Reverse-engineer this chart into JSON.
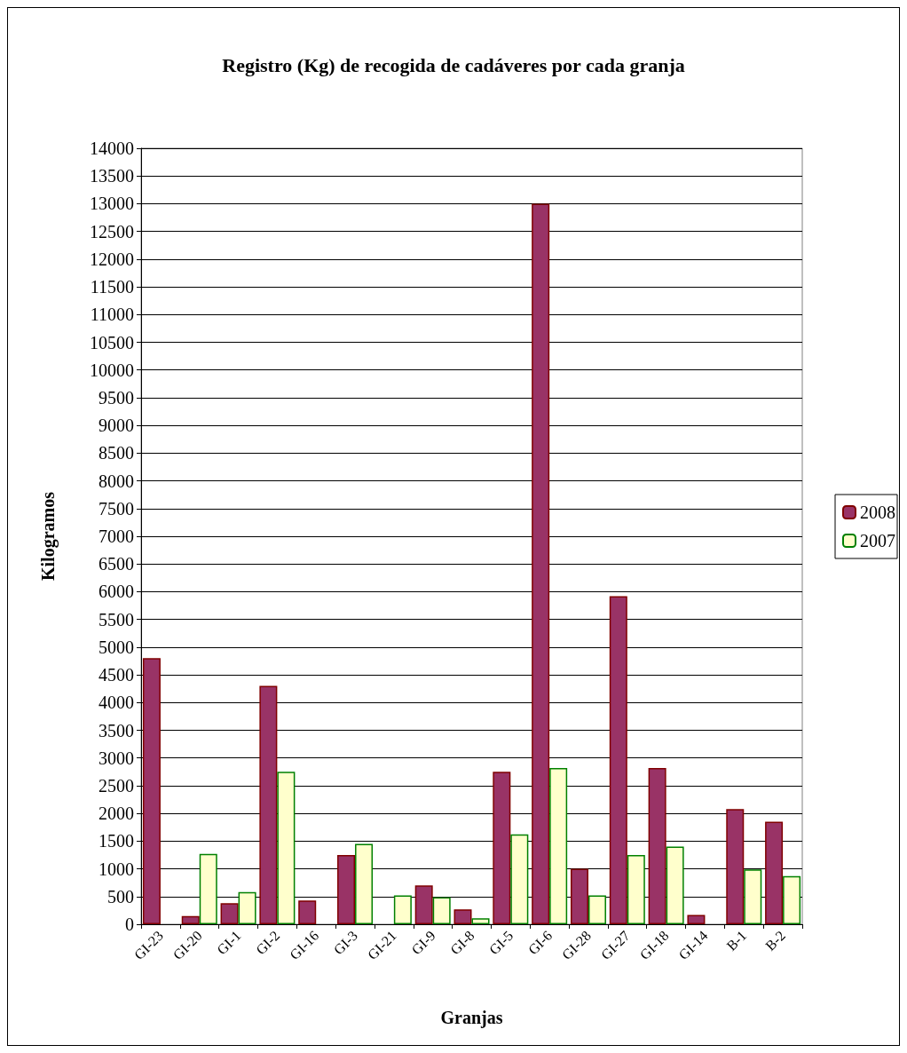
{
  "chart_data": {
    "type": "bar",
    "title": "Registro (Kg) de recogida de cadáveres por cada granja",
    "xlabel": "Granjas",
    "ylabel": "Kilogramos",
    "categories": [
      "GI-23",
      "GI-20",
      "GI-1",
      "GI-2",
      "GI-16",
      "GI-3",
      "GI-21",
      "GI-9",
      "GI-8",
      "GI-5",
      "GI-6",
      "GI-28",
      "GI-27",
      "GI-18",
      "GI-14",
      "B-1",
      "B-2"
    ],
    "series": [
      {
        "name": "2008",
        "color": "#993366",
        "values": [
          4800,
          150,
          380,
          4300,
          430,
          1250,
          null,
          700,
          270,
          2750,
          13000,
          1000,
          5920,
          2820,
          170,
          2080,
          1850
        ]
      },
      {
        "name": "2007",
        "color": "#ffffcc",
        "values": [
          null,
          1270,
          580,
          2750,
          null,
          1450,
          520,
          490,
          110,
          1620,
          2820,
          520,
          1250,
          1400,
          null,
          990,
          870
        ]
      }
    ],
    "ylim": [
      0,
      14000
    ],
    "yticks": [
      0,
      500,
      1000,
      1500,
      2000,
      2500,
      3000,
      3500,
      4000,
      4500,
      5000,
      5500,
      6000,
      6500,
      7000,
      7500,
      8000,
      8500,
      9000,
      9500,
      10000,
      10500,
      11000,
      11500,
      12000,
      12500,
      13000,
      13500,
      14000
    ],
    "grid": "y",
    "legend": "right"
  }
}
